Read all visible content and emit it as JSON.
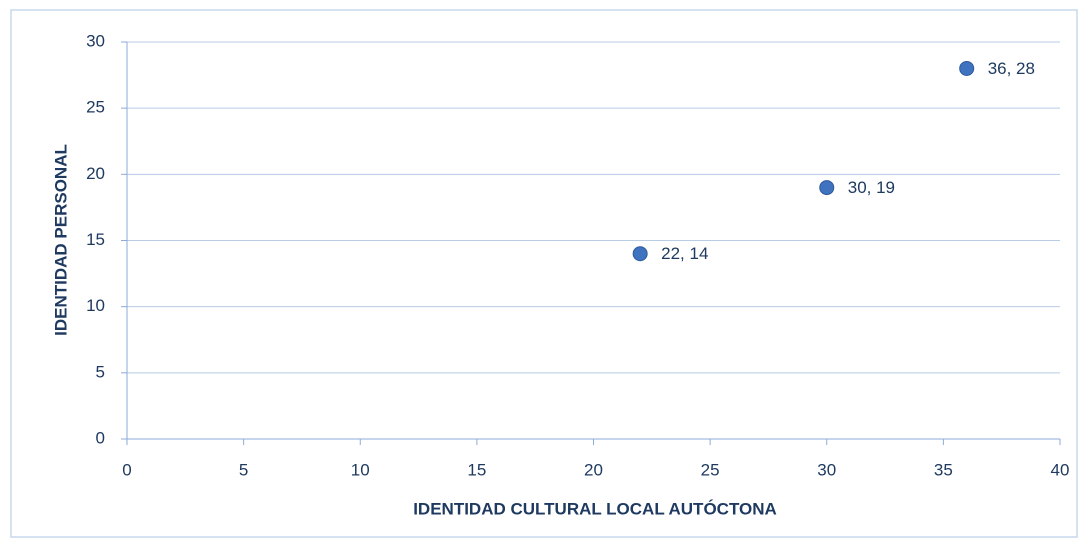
{
  "chart_data": {
    "type": "scatter",
    "xlabel": "IDENTIDAD CULTURAL LOCAL AUTÓCTONA",
    "ylabel": "IDENTIDAD  PERSONAL",
    "x": [
      22,
      30,
      36
    ],
    "values": [
      14,
      19,
      28
    ],
    "value_labels": [
      "22, 14",
      "30, 19",
      "36, 28"
    ],
    "color": "#3f72bf",
    "xlim": [
      0,
      40
    ],
    "xticks": [
      0,
      5,
      10,
      15,
      20,
      25,
      30,
      35,
      40
    ],
    "ylim": [
      0,
      30
    ],
    "yticks": [
      0,
      5,
      10,
      15,
      20,
      25,
      30
    ],
    "grid": true
  }
}
